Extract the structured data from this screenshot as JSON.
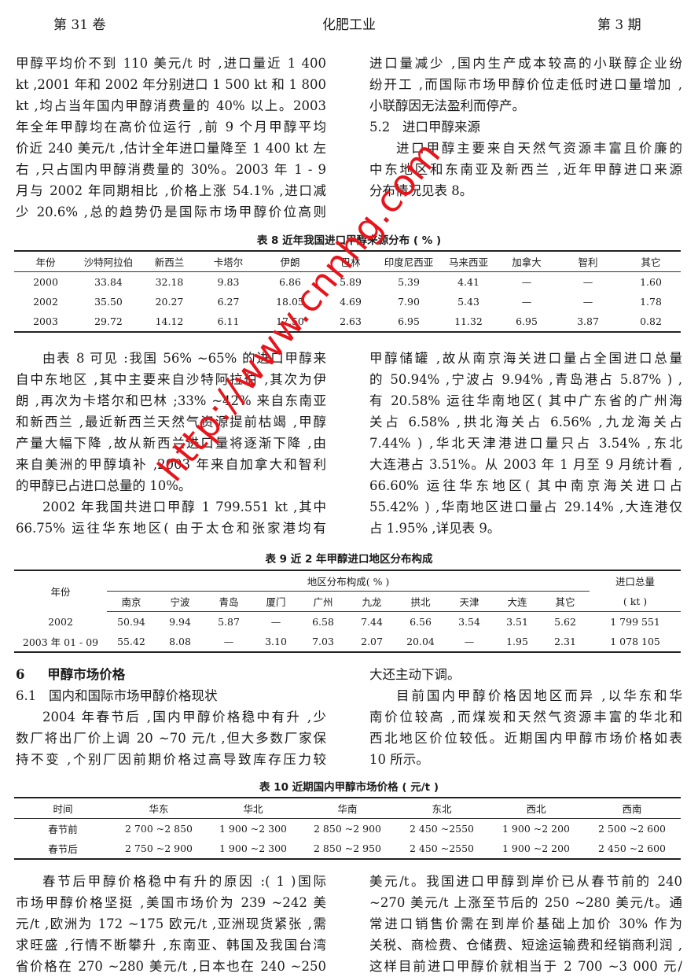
{
  "header": {
    "volume": "第 31 卷",
    "journal": "化肥工业",
    "issue": "第 3 期"
  },
  "bands": [
    {
      "left": [
        {
          "type": "paragraph",
          "indent": false,
          "runs_on": true,
          "lines": [
            "甲醇平均价不到 110 美元/t 时 ,进口量近 1 400",
            "kt ,2001 年和 2002 年分别进口 1 500 kt 和 1 800",
            "kt ,均占当年国内甲醇消费量的 40% 以上。2003",
            "年全年甲醇均在高价位运行 ,前 9 个月甲醇平均",
            "价近 240 美元/t ,估计全年进口量降至 1 400 kt 左",
            "右 ,只占国内甲醇消费量的 30%。2003 年 1 - 9",
            "月与 2002 年同期相比 ,价格上涨 54.1% ,进口减",
            "少 20.6% ,总的趋势仍是国际市场甲醇价位高则"
          ]
        }
      ],
      "right": [
        {
          "type": "paragraph",
          "indent": false,
          "runs_on": false,
          "lines": [
            "进口量减少 ,国内生产成本较高的小联醇企业纷",
            "纷开工 ,而国际市场甲醇价位走低时进口量增加 ,",
            "小联醇因无法盈利而停产。"
          ]
        },
        {
          "type": "subheading",
          "text": "5.2   进口甲醇来源"
        },
        {
          "type": "paragraph",
          "indent": true,
          "runs_on": false,
          "lines": [
            "进口甲醇主要来自天然气资源丰富且价廉的",
            "中东地区和东南亚及新西兰 ,近年甲醇进口来源",
            "分布情况见表 8。"
          ]
        }
      ]
    },
    {
      "left": [
        {
          "type": "paragraph",
          "indent": true,
          "runs_on": false,
          "lines": [
            "由表 8 可见 :我国 56% ~65% 的进口甲醇来",
            "自中东地区 ,其中主要来自沙特阿拉伯 ,其次为伊",
            "朗 ,再次为卡塔尔和巴林 ;33% ~42% 来自东南亚",
            "和新西兰 ,最近新西兰天然气资源提前枯竭 ,甲醇",
            "产量大幅下降 ,故从新西兰进口量将逐渐下降 ,由",
            "来自美洲的甲醇填补 ,2003 年来自加拿大和智利",
            "的甲醇已占进口总量的 10%。"
          ]
        },
        {
          "type": "paragraph",
          "indent": true,
          "runs_on": true,
          "lines": [
            "2002 年我国共进口甲醇 1 799.551 kt ,其中",
            "66.75% 运往华东地区( 由于太仓和张家港均有"
          ]
        }
      ],
      "right": [
        {
          "type": "paragraph",
          "indent": false,
          "runs_on": false,
          "lines": [
            "甲醇储罐 ,故从南京海关进口量占全国进口总量",
            "的 50.94% ,宁波占 9.94% ,青岛港占 5.87% ) ,",
            "有 20.58% 运往华南地区( 其中广东省的广州海",
            "关占 6.58% ,拱北海关占 6.56% ,九龙海关占",
            "7.44% ) ,华北天津港进口量只占 3.54% ,东北",
            "大连港占 3.51%。从 2003 年 1 月至 9 月统计看 ,",
            "66.60% 运往华东地区( 其中南京海关进口占",
            "55.42% ) ,华南地区进口量占 29.14% ,大连港仅",
            "占 1.95% ,详见表 9。"
          ]
        }
      ]
    },
    {
      "left": [
        {
          "type": "heading",
          "text": "6     甲醇市场价格"
        },
        {
          "type": "subheading",
          "text": "6.1   国内和国际市场甲醇价格现状"
        },
        {
          "type": "paragraph",
          "indent": true,
          "runs_on": true,
          "lines": [
            "2004 年春节后 ,国内甲醇价格稳中有升 ,少",
            "数厂将出厂价上调 20 ~70 元/t ,但大多数厂家保",
            "持不变 ,个别厂因前期价格过高导致库存压力较"
          ]
        }
      ],
      "right": [
        {
          "type": "paragraph",
          "indent": false,
          "runs_on": false,
          "lines": [
            "大还主动下调。"
          ]
        },
        {
          "type": "paragraph",
          "indent": true,
          "runs_on": false,
          "lines": [
            "目前国内甲醇价格因地区而异 ,以华东和华",
            "南价位较高 ,而煤炭和天然气资源丰富的华北和",
            "西北地区价位较低。近期国内甲醇市场价格如表",
            "10 所示。"
          ]
        }
      ]
    },
    {
      "left": [
        {
          "type": "paragraph",
          "indent": true,
          "runs_on": true,
          "lines": [
            "春节后甲醇价格稳中有升的原因 :( 1 )国际",
            "市场甲醇价格坚挺 ,美国市场价为 239 ~242 美",
            "元/t ,欧洲为 172 ~175 欧元/t ,亚洲现货紧张 ,需",
            "求旺盛 ,行情不断攀升 ,东南亚、韩国及我国台湾",
            "省价格在 270 ~280 美元/t ,日本也在 240 ~250"
          ]
        }
      ],
      "right": [
        {
          "type": "paragraph",
          "indent": false,
          "runs_on": true,
          "lines": [
            "美元/t。我国进口甲醇到岸价已从春节前的 240",
            "~270 美元/t 上涨至节后的 250 ~280 美元/t。通",
            "常进口销售价需在到岸价基础上加价 30% 作为",
            "关税、商检费、仓储费、短途运输费和经销商利润 ,",
            "这样目前进口甲醇价就相当于 2 700 ~3 000 元/"
          ]
        }
      ]
    }
  ],
  "table8": {
    "caption": "表 8   近年我国进口甲醇来源分布  ( % )",
    "headers": [
      "年份",
      "沙特阿拉伯",
      "新西兰",
      "卡塔尔",
      "伊朗",
      "巴林",
      "印度尼西亚",
      "马来西亚",
      "加拿大",
      "智利",
      "其它"
    ],
    "rows": [
      [
        "2000",
        "33.84",
        "32.18",
        "9.83",
        "6.86",
        "5.89",
        "5.39",
        "4.41",
        "—",
        "—",
        "1.60"
      ],
      [
        "2002",
        "35.50",
        "20.27",
        "6.27",
        "18.05",
        "4.69",
        "7.90",
        "5.43",
        "—",
        "—",
        "1.78"
      ],
      [
        "2003",
        "29.72",
        "14.12",
        "6.11",
        "17.50",
        "2.63",
        "6.95",
        "11.32",
        "6.95",
        "3.87",
        "0.82"
      ]
    ]
  },
  "table9": {
    "caption": "表 9   近 2 年甲醇进口地区分布构成",
    "year_header": "年份",
    "group_header": "地区分布构成( % )",
    "total_header": "进口总量",
    "total_unit": "( kt )",
    "regions": [
      "南京",
      "宁波",
      "青岛",
      "厦门",
      "广州",
      "九龙",
      "拱北",
      "天津",
      "大连",
      "其它"
    ],
    "rows": [
      [
        "2002",
        "50.94",
        "9.94",
        "5.87",
        "—",
        "6.58",
        "7.44",
        "6.56",
        "3.54",
        "3.51",
        "5.62",
        "1 799 551"
      ],
      [
        "2003 年 01 - 09",
        "55.42",
        "8.08",
        "—",
        "3.10",
        "7.03",
        "2.07",
        "20.04",
        "—",
        "1.95",
        "2.31",
        "1 078 105"
      ]
    ]
  },
  "table10": {
    "caption": "表 10   近期国内甲醇市场价格  ( 元/t )",
    "headers": [
      "时间",
      "华东",
      "华北",
      "华南",
      "东北",
      "西北",
      "西南"
    ],
    "rows": [
      [
        "春节前",
        "2 700 ~2 850",
        "1 900 ~2 300",
        "2 850 ~2 900",
        "2 450 ~2550",
        "1 900 ~2 200",
        "2 500 ~2 600"
      ],
      [
        "春节后",
        "2 750 ~2 900",
        "1 900 ~2 300",
        "2 850 ~2 950",
        "2 450 ~2550",
        "1 900 ~2 200",
        "2 450 ~2 600"
      ]
    ]
  },
  "watermark": {
    "text": "http://www.cnnhg.com",
    "color": "#e8141b"
  }
}
